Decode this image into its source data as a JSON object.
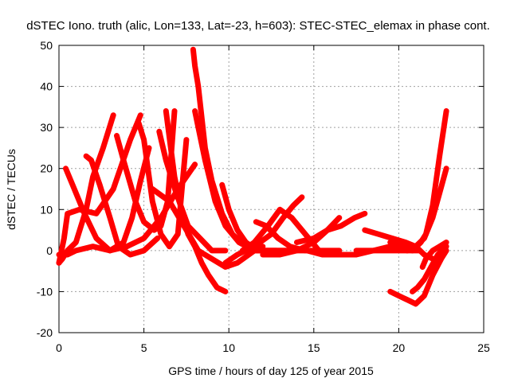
{
  "chart_data": {
    "type": "line",
    "title": "dSTEC Iono. truth (alic, Lon=133, Lat=-23, h=603): STEC-STEC_elemax in phase cont.",
    "xlabel": "GPS time / hours of day 125 of year 2015",
    "ylabel": "dSTEC  / TECUs",
    "xlim": [
      0,
      25
    ],
    "ylim": [
      -20,
      50
    ],
    "xticks": [
      0,
      5,
      10,
      15,
      20,
      25
    ],
    "yticks": [
      -20,
      -10,
      0,
      10,
      20,
      30,
      40,
      50
    ],
    "xtick_labels": [
      "0",
      "5",
      "10",
      "15",
      "20",
      "25"
    ],
    "ytick_labels": [
      "-20",
      "-10",
      "0",
      "10",
      "20",
      "30",
      "40",
      "50"
    ],
    "grid": true,
    "legend": "none",
    "marker": "plus",
    "color": "#ff0000",
    "series": [
      {
        "x": [
          0.0,
          0.2,
          0.5,
          1.0,
          1.6,
          2.0,
          2.6,
          3.2
        ],
        "y": [
          -3,
          -2,
          0,
          2,
          10,
          18,
          25,
          33
        ]
      },
      {
        "x": [
          0.0,
          0.3,
          0.5,
          1.2,
          2.2,
          3.2,
          4.2,
          4.8
        ],
        "y": [
          -3,
          3,
          9,
          10,
          9,
          15,
          27,
          33
        ]
      },
      {
        "x": [
          0.4,
          0.8,
          1.5,
          2.2,
          3.0,
          3.8,
          4.3,
          4.8,
          5.3
        ],
        "y": [
          20,
          16,
          9,
          3,
          0,
          2,
          8,
          17,
          25
        ]
      },
      {
        "x": [
          0.0,
          0.5,
          1.0,
          2.0,
          3.0,
          4.0,
          5.0,
          6.0,
          7.0,
          8.0
        ],
        "y": [
          -1,
          -1,
          0,
          1,
          0,
          1,
          3,
          8,
          15,
          21
        ]
      },
      {
        "x": [
          1.6,
          1.9,
          2.4,
          3.0,
          3.5,
          4.2,
          5.0,
          5.8
        ],
        "y": [
          23,
          22,
          16,
          8,
          1,
          -1,
          0,
          3
        ]
      },
      {
        "x": [
          3.4,
          3.8,
          4.5,
          5.0,
          5.6,
          6.0,
          6.4,
          6.8
        ],
        "y": [
          28,
          22,
          12,
          7,
          5,
          6,
          12,
          34
        ]
      },
      {
        "x": [
          4.7,
          5.0,
          5.5,
          6.0,
          6.5,
          7.0,
          7.5
        ],
        "y": [
          31,
          27,
          12,
          4,
          1,
          4,
          27
        ]
      },
      {
        "x": [
          5.9,
          6.3,
          6.9,
          7.6,
          8.3,
          9.0,
          9.8
        ],
        "y": [
          29,
          22,
          14,
          6,
          3,
          0,
          0
        ]
      },
      {
        "x": [
          6.3,
          6.8,
          7.2,
          7.6,
          8.0,
          8.4,
          8.8,
          9.3,
          9.8
        ],
        "y": [
          34,
          18,
          10,
          4,
          1,
          -3,
          -6,
          -9,
          -10
        ]
      },
      {
        "x": [
          7.9,
          8.0,
          8.2,
          8.6,
          9.0,
          9.6,
          10.2,
          11.0,
          12.0
        ],
        "y": [
          49,
          45,
          40,
          25,
          17,
          9,
          4,
          1,
          1
        ]
      },
      {
        "x": [
          8.0,
          8.2,
          8.6,
          9.2,
          9.8,
          10.6,
          11.5,
          12.5,
          13.5
        ],
        "y": [
          34,
          30,
          22,
          12,
          6,
          2,
          0,
          0,
          0
        ]
      },
      {
        "x": [
          5.5,
          6.5,
          7.5,
          8.2,
          9.0,
          9.8,
          10.5,
          11.5,
          13.0,
          14.5
        ],
        "y": [
          15,
          12,
          5,
          0,
          -2,
          -4,
          -3,
          0,
          0,
          0
        ]
      },
      {
        "x": [
          9.6,
          10.0,
          10.5,
          11.0,
          11.7,
          12.3,
          12.8
        ],
        "y": [
          16,
          10,
          5,
          2,
          0,
          0,
          0
        ]
      },
      {
        "x": [
          9.8,
          10.5,
          11.5,
          12.5,
          13.2,
          13.8,
          14.3
        ],
        "y": [
          -3,
          -1,
          1,
          4,
          8,
          11,
          13
        ]
      },
      {
        "x": [
          10.8,
          11.5,
          12.3,
          13.0,
          13.7,
          14.5,
          15.3
        ],
        "y": [
          0,
          2,
          6,
          10,
          8,
          4,
          0
        ]
      },
      {
        "x": [
          11.6,
          12.2,
          12.9,
          13.6,
          14.5,
          15.5,
          16.5
        ],
        "y": [
          7,
          6,
          3,
          1,
          0,
          0,
          0
        ]
      },
      {
        "x": [
          12.0,
          13.0,
          14.0,
          15.0,
          15.8,
          16.5
        ],
        "y": [
          -1,
          -1,
          0,
          2,
          5,
          8
        ]
      },
      {
        "x": [
          14.0,
          15.0,
          15.8,
          16.6,
          17.4,
          18.0
        ],
        "y": [
          2,
          3,
          5,
          6,
          8,
          9
        ]
      },
      {
        "x": [
          14.6,
          15.5,
          16.5,
          17.5,
          18.5,
          19.5,
          20.5
        ],
        "y": [
          0,
          -1,
          -1,
          -1,
          0,
          1,
          0
        ]
      },
      {
        "x": [
          18.0,
          18.8,
          19.6,
          20.4,
          21.0,
          21.5,
          22.0
        ],
        "y": [
          5,
          4,
          3,
          2,
          1,
          -1,
          -2
        ]
      },
      {
        "x": [
          19.5,
          20.0,
          20.5,
          21.0,
          21.5,
          22.0,
          22.5,
          22.8
        ],
        "y": [
          -10,
          -11,
          -12,
          -13,
          -11,
          -6,
          -2,
          0
        ]
      },
      {
        "x": [
          20.8,
          21.1,
          21.5,
          21.9,
          22.3,
          22.8
        ],
        "y": [
          -10,
          -9,
          -7,
          -4,
          -1,
          1
        ]
      },
      {
        "x": [
          19.5,
          20.2,
          20.8,
          21.3,
          21.6,
          22.0,
          22.4,
          22.8
        ],
        "y": [
          2,
          1,
          0,
          2,
          4,
          11,
          23,
          34
        ]
      },
      {
        "x": [
          20.5,
          21.0,
          21.5,
          22.0,
          22.4,
          22.8
        ],
        "y": [
          0,
          1,
          3,
          8,
          14,
          20
        ]
      },
      {
        "x": [
          21.4,
          21.6,
          22.0,
          22.4,
          22.8
        ],
        "y": [
          -4,
          -2,
          0,
          1,
          2
        ]
      },
      {
        "x": [
          17.5,
          18.2,
          19.0,
          19.8,
          20.5,
          21.2
        ],
        "y": [
          0,
          0,
          0,
          0,
          0,
          0
        ]
      }
    ]
  }
}
